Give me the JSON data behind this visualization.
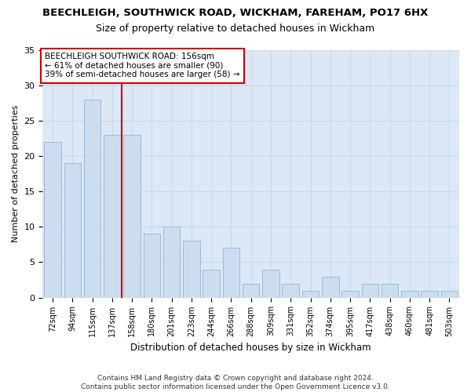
{
  "title1": "BEECHLEIGH, SOUTHWICK ROAD, WICKHAM, FAREHAM, PO17 6HX",
  "title2": "Size of property relative to detached houses in Wickham",
  "xlabel": "Distribution of detached houses by size in Wickham",
  "ylabel": "Number of detached properties",
  "categories": [
    "72sqm",
    "94sqm",
    "115sqm",
    "137sqm",
    "158sqm",
    "180sqm",
    "201sqm",
    "223sqm",
    "244sqm",
    "266sqm",
    "288sqm",
    "309sqm",
    "331sqm",
    "352sqm",
    "374sqm",
    "395sqm",
    "417sqm",
    "438sqm",
    "460sqm",
    "481sqm",
    "503sqm"
  ],
  "values": [
    22,
    19,
    28,
    23,
    23,
    9,
    10,
    8,
    4,
    7,
    2,
    4,
    2,
    1,
    3,
    1,
    2,
    2,
    1,
    1,
    1
  ],
  "bar_color": "#ccddf0",
  "bar_edge_color": "#99bbdd",
  "annotation_text": "BEECHLEIGH SOUTHWICK ROAD: 156sqm\n← 61% of detached houses are smaller (90)\n39% of semi-detached houses are larger (58) →",
  "annotation_box_color": "#ffffff",
  "annotation_box_edge_color": "#cc0000",
  "vline_color": "#cc0000",
  "ylim": [
    0,
    35
  ],
  "yticks": [
    0,
    5,
    10,
    15,
    20,
    25,
    30,
    35
  ],
  "grid_color": "#c8d8ec",
  "plot_bg_color": "#dce8f5",
  "fig_bg_color": "#ffffff",
  "footer1": "Contains HM Land Registry data © Crown copyright and database right 2024.",
  "footer2": "Contains public sector information licensed under the Open Government Licence v3.0.",
  "title1_fontsize": 9.5,
  "title2_fontsize": 9,
  "xlabel_fontsize": 8.5,
  "ylabel_fontsize": 8,
  "tick_fontsize": 7,
  "annotation_fontsize": 7.5,
  "footer_fontsize": 6.5
}
